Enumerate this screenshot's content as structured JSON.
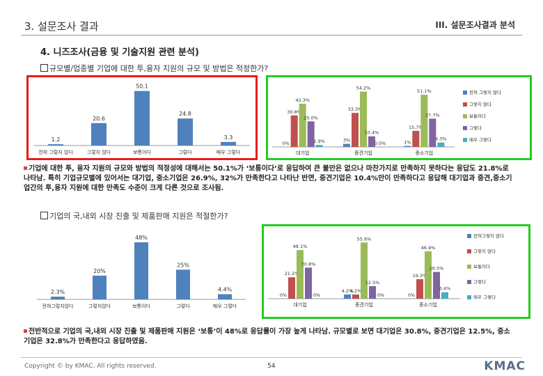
{
  "header": {
    "section": "3. 설문조사 결과",
    "chapter": "III. 설문조사결과 분석"
  },
  "section_title": "4. 니즈조사(금융 및 기술지원 관련 분석)",
  "q1": "규모별/업종별 기업에 대한 투,융자 지원의 규모 및 방법은 적정한가?",
  "q2": "기업의 국,내외 시장 진출 및 제품판매 지원은 적절한가?",
  "note1": "기업에 대한 투, 융자 지원의 규모와 방법의 적정성에 대해서는 50.1%가 ‘보통이다’로 응답하여 큰 불만은 없으나 마찬가지로 만족하지 못하다는 응답도 21.8%로 나타남. 특히 기업규모별에 있어서는 대기업, 중소기업은 26.9%, 32%가 만족한다고 나타난 반면, 중견기업은 10.4%만이 만족하다고 응답해 대기업과 중견,중소기업간의 투,융자 지원에 대한 만족도 수준이 크게 다른 것으로 조사됨.",
  "note2": "전반적으로 기업의 국,내외 시장 진출 및 제품판매 지원은 ‘보통’이 48%로 응답률이 가장 높게 나타남. 규모별로 보면 대기업은 30.8%, 중견기업은 12.5%, 중소기업은 32.8%가 만족한다고 응답하였음.",
  "footer": {
    "copyright": "Copyright © by KMAC. All rights reserved.",
    "page": "54",
    "logo": "KMAC"
  },
  "colors": {
    "blue": "#4f81bd",
    "red": "#c0504d",
    "green": "#9bbb59",
    "purple": "#8064a2",
    "cyan": "#4bacc6",
    "red_frame": "#e81c1c",
    "green_frame": "#22cc22"
  },
  "chart_data": [
    {
      "type": "bar",
      "categories": [
        "전혀 그렇지 않다",
        "그렇지 않다",
        "보통이다",
        "그렇다",
        "매우 그렇다"
      ],
      "values": [
        1.2,
        20.6,
        50.1,
        24.8,
        3.3
      ],
      "labels": [
        "1.2",
        "20.6",
        "50.1",
        "24.8",
        "3.3"
      ],
      "ylim": [
        0,
        55
      ]
    },
    {
      "type": "bar",
      "categories": [
        "대기업",
        "중견기업",
        "중소기업"
      ],
      "legend": [
        "전혀 그렇지 않다",
        "그렇지 않다",
        "보통이다",
        "그렇다",
        "매우 그렇다"
      ],
      "series": [
        {
          "name": "전혀 그렇지 않다",
          "values": [
            0,
            3,
            1
          ],
          "labels": [
            "0%",
            "3%",
            "1%"
          ]
        },
        {
          "name": "그렇지 않다",
          "values": [
            30.8,
            33.3,
            15.7
          ],
          "labels": [
            "30.8%",
            "33.3%",
            "15.7%"
          ]
        },
        {
          "name": "보통이다",
          "values": [
            42.3,
            54.2,
            51.1
          ],
          "labels": [
            "42.3%",
            "54.2%",
            "51.1%"
          ]
        },
        {
          "name": "그렇다",
          "values": [
            25,
            10.4,
            27.7
          ],
          "labels": [
            "25.0%",
            "10.4%",
            "27.7%"
          ]
        },
        {
          "name": "매우 그렇다",
          "values": [
            1.9,
            0,
            4.3
          ],
          "labels": [
            "1.9%",
            "0.0%",
            "4.3%"
          ]
        }
      ],
      "ylim": [
        0,
        60
      ]
    },
    {
      "type": "bar",
      "categories": [
        "전혀그렇지않다",
        "그렇지않다",
        "보통이다",
        "그렇다",
        "매우 그렇다"
      ],
      "values": [
        2.3,
        20,
        48,
        25,
        4.4
      ],
      "labels": [
        "2.3%",
        "20%",
        "48%",
        "25%",
        "4.4%"
      ],
      "ylim": [
        0,
        55
      ]
    },
    {
      "type": "bar",
      "categories": [
        "대기업",
        "중견기업",
        "중소기업"
      ],
      "legend": [
        "전혀그렇지 않다",
        "그렇지 않다",
        "보통이다",
        "그렇다",
        "매우 그렇다"
      ],
      "series": [
        {
          "name": "전혀그렇지 않다",
          "values": [
            0,
            4.2,
            0
          ],
          "labels": [
            "0%",
            "4.2%",
            "0%"
          ]
        },
        {
          "name": "그렇지 않다",
          "values": [
            21.2,
            4.2,
            19.3
          ],
          "labels": [
            "21.2%",
            "4.2%",
            "19.3%"
          ]
        },
        {
          "name": "보통이다",
          "values": [
            48.1,
            55.6,
            46.9
          ],
          "labels": [
            "48.1%",
            "55.6%",
            "46.9%"
          ]
        },
        {
          "name": "그렇다",
          "values": [
            30.8,
            12.5,
            26.5
          ],
          "labels": [
            "30.8%",
            "12.5%",
            "26.5%"
          ]
        },
        {
          "name": "매우 그렇다",
          "values": [
            0,
            0,
            6.4
          ],
          "labels": [
            "0%",
            "0%",
            "6.4%"
          ]
        }
      ],
      "ylim": [
        0,
        62
      ]
    }
  ]
}
